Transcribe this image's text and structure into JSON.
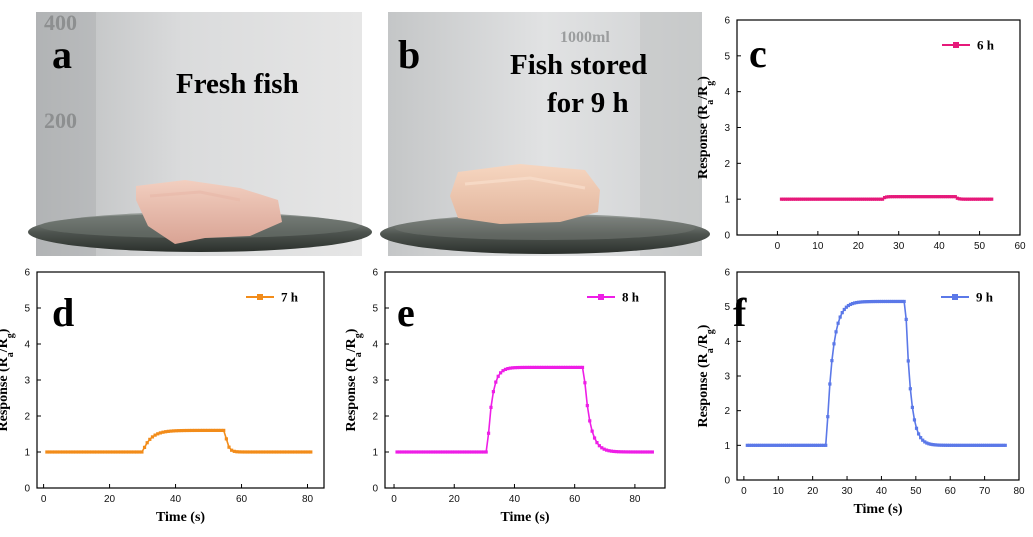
{
  "photos": [
    {
      "letter": "a",
      "caption_lines": [
        "Fresh fish"
      ]
    },
    {
      "letter": "b",
      "caption_lines": [
        "Fish stored",
        "for 9 h"
      ]
    }
  ],
  "y_label": {
    "main": "Response (R",
    "sub_a": "a",
    "slash": "/R",
    "sub_g": "g",
    "close": ")"
  },
  "chart_data": [
    {
      "panel": "c",
      "type": "line",
      "series": [
        {
          "name": "6 h",
          "color": "#e6197a"
        }
      ],
      "xlim": [
        -10,
        60
      ],
      "xticks": [
        0,
        10,
        20,
        30,
        40,
        50,
        60
      ],
      "ylim": [
        0,
        6
      ],
      "yticks": [
        0,
        1,
        2,
        3,
        4,
        5,
        6
      ],
      "xlabel": "",
      "ylabel": "Response (Ra/Rg)",
      "x_range": [
        1,
        53
      ],
      "step_start": 26,
      "step_end": 44,
      "baseline": 1.0,
      "plateau": 1.07,
      "rise_tau": 0.5,
      "decay_tau": 0.5,
      "dx": 0.5,
      "legend": "top-right"
    },
    {
      "panel": "d",
      "type": "line",
      "series": [
        {
          "name": "7 h",
          "color": "#f28c1a"
        }
      ],
      "xlim": [
        -2,
        85
      ],
      "xticks": [
        0,
        20,
        40,
        60,
        80
      ],
      "ylim": [
        0,
        6
      ],
      "yticks": [
        0,
        1,
        2,
        3,
        4,
        5,
        6
      ],
      "xlabel": "Time (s)",
      "ylabel": "Response (Ra/Rg)",
      "x_range": [
        1,
        81
      ],
      "step_start": 30,
      "step_end": 55,
      "baseline": 1.0,
      "plateau": 1.6,
      "rise_tau": 2.5,
      "decay_tau": 0.8,
      "dx": 0.8,
      "legend": "top-right"
    },
    {
      "panel": "e",
      "type": "line",
      "series": [
        {
          "name": "8 h",
          "color": "#ee1ee6"
        }
      ],
      "xlim": [
        -3,
        90
      ],
      "xticks": [
        0,
        20,
        40,
        60,
        80
      ],
      "ylim": [
        0,
        6
      ],
      "yticks": [
        0,
        1,
        2,
        3,
        4,
        5,
        6
      ],
      "xlabel": "Time (s)",
      "ylabel": "Response (Ra/Rg)",
      "x_range": [
        1,
        86
      ],
      "step_start": 31,
      "step_end": 63,
      "baseline": 1.0,
      "plateau": 3.35,
      "rise_tau": 1.6,
      "decay_tau": 2.0,
      "dx": 0.8,
      "legend": "top-right"
    },
    {
      "panel": "f",
      "type": "line",
      "series": [
        {
          "name": "9 h",
          "color": "#5b78e8"
        }
      ],
      "xlim": [
        -2,
        80
      ],
      "xticks": [
        0,
        10,
        20,
        30,
        40,
        50,
        60,
        70,
        80
      ],
      "ylim": [
        0,
        6
      ],
      "yticks": [
        0,
        1,
        2,
        3,
        4,
        5,
        6
      ],
      "xlabel": "Time (s)",
      "ylabel": "Response (Ra/Rg)",
      "x_range": [
        1,
        76
      ],
      "step_start": 24,
      "step_end": 47,
      "baseline": 1.0,
      "plateau": 5.15,
      "rise_tau": 1.8,
      "decay_tau": 1.5,
      "dx": 0.6,
      "legend": "top-right"
    }
  ]
}
